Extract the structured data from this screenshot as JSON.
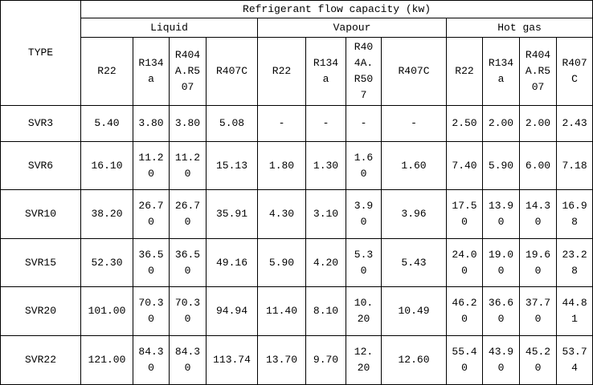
{
  "table": {
    "type_label": "TYPE",
    "title": "Refrigerant flow capacity (kw)",
    "groups": [
      {
        "name": "Liquid",
        "columns": [
          "R22",
          "R134a",
          "R404A.R507",
          "R407C"
        ]
      },
      {
        "name": "Vapour",
        "columns": [
          "R22",
          "R134a",
          "R404A.R507",
          "R407C"
        ]
      },
      {
        "name": "Hot gas",
        "columns": [
          "R22",
          "R134a",
          "R404A.R507",
          "R407C"
        ]
      }
    ],
    "rows": [
      [
        "SVR3",
        "5.40",
        "3.80",
        "3.80",
        "5.08",
        "-",
        "-",
        "-",
        "-",
        "2.50",
        "2.00",
        "2.00",
        "2.43"
      ],
      [
        "SVR6",
        "16.10",
        "11.20",
        "11.20",
        "15.13",
        "1.80",
        "1.30",
        "1.60",
        "1.60",
        "7.40",
        "5.90",
        "6.00",
        "7.18"
      ],
      [
        "SVR10",
        "38.20",
        "26.70",
        "26.70",
        "35.91",
        "4.30",
        "3.10",
        "3.90",
        "3.96",
        "17.50",
        "13.90",
        "14.30",
        "16.98"
      ],
      [
        "SVR15",
        "52.30",
        "36.50",
        "36.50",
        "49.16",
        "5.90",
        "4.20",
        "5.30",
        "5.43",
        "24.00",
        "19.00",
        "19.60",
        "23.28"
      ],
      [
        "SVR20",
        "101.00",
        "70.30",
        "70.30",
        "94.94",
        "11.40",
        "8.10",
        "10.20",
        "10.49",
        "46.20",
        "36.60",
        "37.70",
        "44.81"
      ],
      [
        "SVR22",
        "121.00",
        "84.30",
        "84.30",
        "113.74",
        "13.70",
        "9.70",
        "12.20",
        "12.60",
        "55.40",
        "43.90",
        "45.20",
        "53.74"
      ]
    ]
  }
}
